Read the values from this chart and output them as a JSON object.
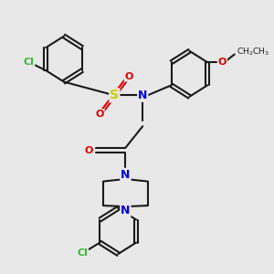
{
  "bg_color": "#e8e8e8",
  "bond_color": "#1a1a1a",
  "bond_width": 1.5,
  "atom_colors": {
    "N": "#0000dd",
    "O": "#dd0000",
    "S": "#cccc00",
    "Cl": "#33bb33"
  },
  "font_size": 8,
  "fig_size": [
    3.0,
    3.0
  ],
  "dpi": 100,
  "xlim": [
    0,
    10
  ],
  "ylim": [
    0,
    10
  ]
}
